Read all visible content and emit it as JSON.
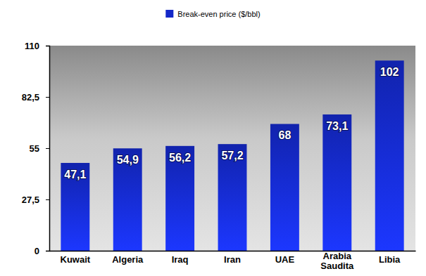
{
  "chart_data": {
    "type": "bar",
    "categories": [
      "Kuwait",
      "Algeria",
      "Iraq",
      "Iran",
      "UAE",
      "Arabia Saudita",
      "Libia"
    ],
    "series": [
      {
        "name": "Break-even price ($/bbl)",
        "color": "#1428c8",
        "values": [
          47.1,
          54.9,
          56.2,
          57.2,
          68,
          73.1,
          102
        ],
        "value_labels": [
          "47,1",
          "54,9",
          "56,2",
          "57,2",
          "68",
          "73,1",
          "102"
        ]
      }
    ],
    "ylim": [
      0,
      110
    ],
    "yticks": [
      0,
      {
        "value": 27.5,
        "label": "27,5"
      },
      55,
      {
        "value": 82.5,
        "label": "82,5"
      },
      110
    ],
    "grid": false,
    "legend": "top",
    "data_labels": true
  }
}
